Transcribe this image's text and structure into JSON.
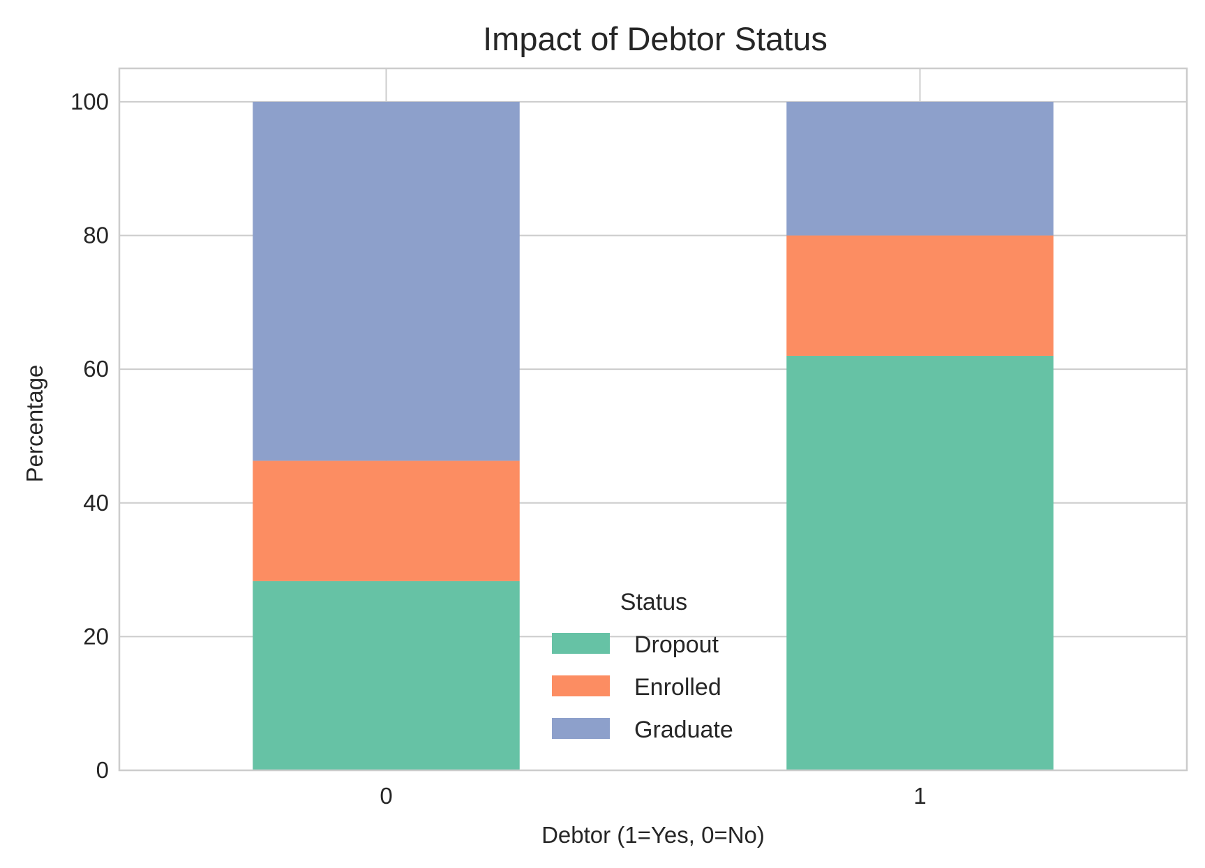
{
  "chart_data": {
    "type": "bar",
    "stacked": true,
    "title": "Impact of Debtor Status",
    "xlabel": "Debtor (1=Yes, 0=No)",
    "ylabel": "Percentage",
    "categories": [
      "0",
      "1"
    ],
    "series": [
      {
        "name": "Dropout",
        "values": [
          28.3,
          62.0
        ],
        "color": "#66c2a5"
      },
      {
        "name": "Enrolled",
        "values": [
          18.0,
          18.0
        ],
        "color": "#fc8d62"
      },
      {
        "name": "Graduate",
        "values": [
          53.7,
          20.0
        ],
        "color": "#8da0cb"
      }
    ],
    "ylim": [
      0,
      105
    ],
    "yticks": [
      "0",
      "20",
      "40",
      "60",
      "80",
      "100"
    ],
    "grid": true,
    "legend": {
      "title": "Status",
      "placement": "lower-center"
    }
  }
}
